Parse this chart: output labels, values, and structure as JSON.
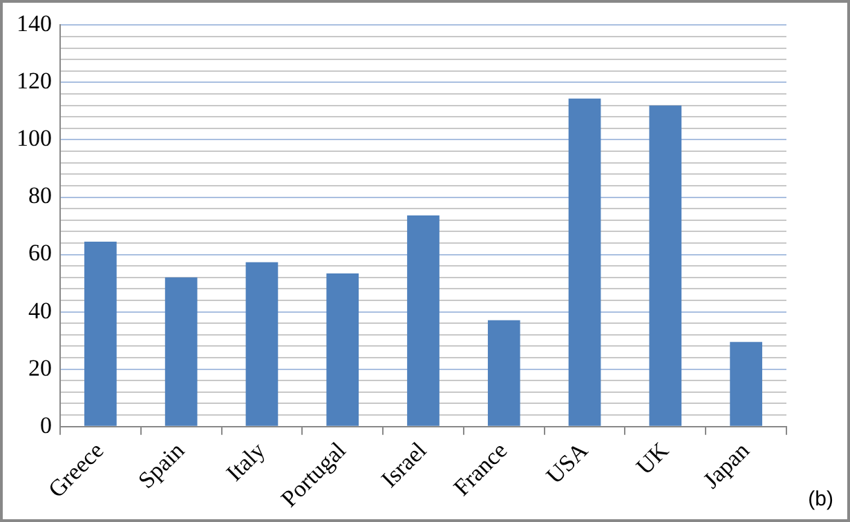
{
  "chart_data": {
    "type": "bar",
    "categories": [
      "Greece",
      "Spain",
      "Italy",
      "Portugal",
      "Israel",
      "France",
      "USA",
      "UK",
      "Japan"
    ],
    "values": [
      64.5,
      52,
      57.3,
      53.4,
      73.6,
      37.1,
      114.4,
      112,
      29.5
    ],
    "color": "#4f81bd",
    "ylim": [
      0,
      140
    ],
    "yticks": [
      0,
      {
        "value": 4,
        "label": null
      },
      {
        "value": 8,
        "label": null
      },
      {
        "value": 12,
        "label": null
      },
      {
        "value": 16,
        "label": null
      },
      20,
      {
        "value": 24,
        "label": null
      },
      {
        "value": 28,
        "label": null
      },
      {
        "value": 32,
        "label": null
      },
      {
        "value": 36,
        "label": null
      },
      40,
      {
        "value": 44,
        "label": null
      },
      {
        "value": 48,
        "label": null
      },
      {
        "value": 52,
        "label": null
      },
      {
        "value": 56,
        "label": null
      },
      60,
      {
        "value": 64,
        "label": null
      },
      {
        "value": 68,
        "label": null
      },
      {
        "value": 72,
        "label": null
      },
      {
        "value": 76,
        "label": null
      },
      80,
      {
        "value": 84,
        "label": null
      },
      {
        "value": 88,
        "label": null
      },
      {
        "value": 92,
        "label": null
      },
      {
        "value": 96,
        "label": null
      },
      100,
      {
        "value": 104,
        "label": null
      },
      {
        "value": 108,
        "label": null
      },
      {
        "value": 112,
        "label": null
      },
      {
        "value": 116,
        "label": null
      },
      120,
      {
        "value": 124,
        "label": null
      },
      {
        "value": 128,
        "label": null
      },
      {
        "value": 132,
        "label": null
      },
      {
        "value": 136,
        "label": null
      },
      140
    ],
    "grid": "y",
    "legend": false,
    "annotations": [
      "(b)"
    ]
  }
}
